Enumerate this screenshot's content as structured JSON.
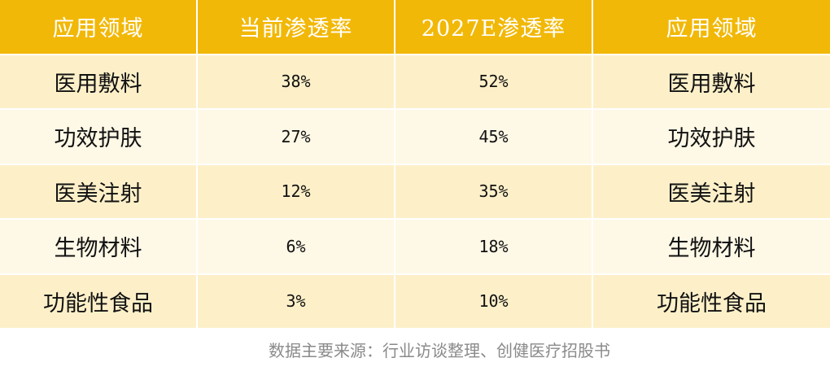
{
  "table": {
    "headers": [
      "应用领域",
      "当前渗透率",
      "2027E渗透率",
      "应用领域"
    ],
    "rows": [
      [
        "医用敷料",
        "38%",
        "52%",
        "医用敷料"
      ],
      [
        "功效护肤",
        "27%",
        "45%",
        "功效护肤"
      ],
      [
        "医美注射",
        "12%",
        "35%",
        "医美注射"
      ],
      [
        "生物材料",
        "6%",
        "18%",
        "生物材料"
      ],
      [
        "功能性食品",
        "3%",
        "10%",
        "功能性食品"
      ]
    ]
  },
  "source_note": "数据主要来源：行业访谈整理、创健医疗招股书",
  "colors": {
    "header_bg": "#f2b807",
    "row_odd_bg": "#fdf0c9",
    "row_even_bg": "#fef8e6",
    "source_text": "#8a8a8a"
  }
}
